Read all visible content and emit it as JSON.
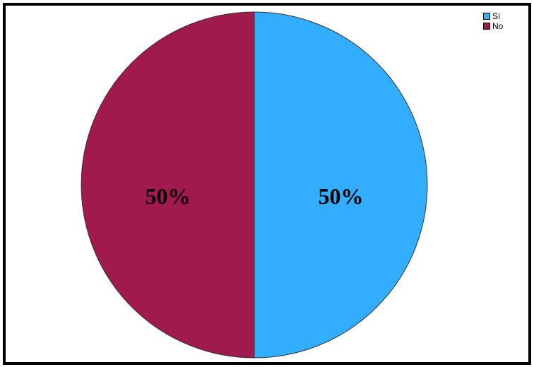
{
  "chart_data": {
    "type": "pie",
    "categories": [
      "Sí",
      "No"
    ],
    "values": [
      50,
      50
    ],
    "labels": [
      "50%",
      "50%"
    ],
    "colors": [
      "#33adff",
      "#a01a4e"
    ],
    "legend_position": "top-right",
    "title": ""
  }
}
